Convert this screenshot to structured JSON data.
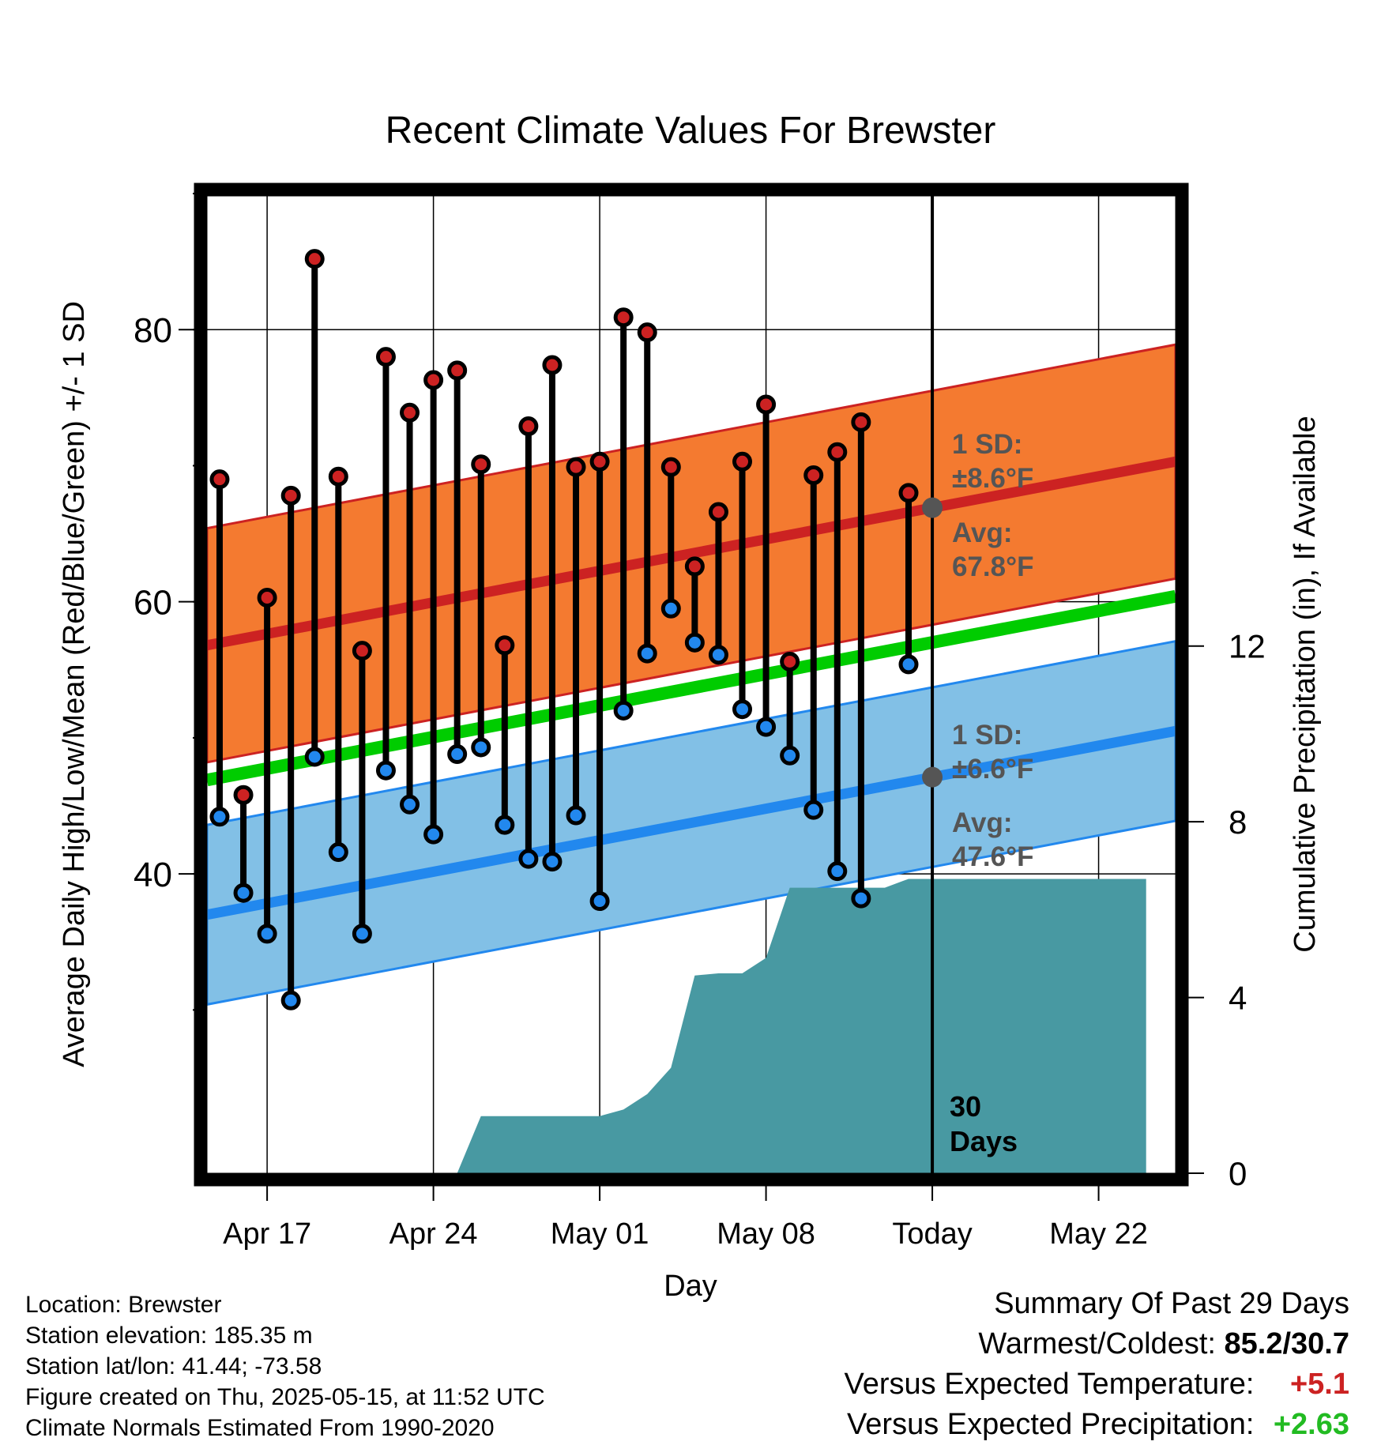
{
  "chart_data": {
    "type": "line",
    "title": "Recent Climate Values For Brewster",
    "xlabel": "Day",
    "ylabel_left": "Average Daily High/Low/Mean (Red/Blue/Green) +/- 1 SD",
    "ylabel_right": "Cumulative Precipitation (in), If Available",
    "x_tick_labels": [
      "Apr 17",
      "Apr 24",
      "May 01",
      "May 08",
      "Today",
      "May 22"
    ],
    "x_range": [
      "2025-04-14",
      "2025-05-24"
    ],
    "y_left_range": [
      18,
      90
    ],
    "y_left_ticks": [
      40,
      60,
      80
    ],
    "y_right_range": [
      0,
      22.3
    ],
    "y_right_ticks": [
      0,
      4,
      8,
      12
    ],
    "grid": true,
    "days": [
      "2025-04-15",
      "2025-04-16",
      "2025-04-17",
      "2025-04-18",
      "2025-04-19",
      "2025-04-20",
      "2025-04-21",
      "2025-04-22",
      "2025-04-23",
      "2025-04-24",
      "2025-04-25",
      "2025-04-26",
      "2025-04-27",
      "2025-04-28",
      "2025-04-29",
      "2025-04-30",
      "2025-05-01",
      "2025-05-02",
      "2025-05-03",
      "2025-05-04",
      "2025-05-05",
      "2025-05-06",
      "2025-05-07",
      "2025-05-08",
      "2025-05-09",
      "2025-05-10",
      "2025-05-11",
      "2025-05-12",
      "2025-05-14"
    ],
    "highs": [
      69.0,
      45.8,
      60.3,
      67.8,
      85.2,
      69.2,
      56.4,
      78.0,
      73.9,
      76.3,
      77.0,
      70.1,
      56.8,
      72.9,
      77.4,
      69.9,
      70.3,
      80.9,
      79.8,
      69.9,
      62.6,
      66.6,
      70.3,
      74.5,
      55.6,
      69.3,
      71.0,
      73.2,
      68.0
    ],
    "lows": [
      44.2,
      38.6,
      35.6,
      30.7,
      48.6,
      41.6,
      35.6,
      47.6,
      45.1,
      42.9,
      48.8,
      49.3,
      43.6,
      41.1,
      40.9,
      44.3,
      38.0,
      52.0,
      56.2,
      59.5,
      57.0,
      56.1,
      52.1,
      50.8,
      48.7,
      44.7,
      40.2,
      38.2,
      55.4
    ],
    "normals": {
      "high_avg_start": 56.8,
      "high_avg_end": 70.3,
      "low_avg_start": 37.0,
      "low_avg_end": 50.5,
      "mean_start": 46.9,
      "mean_end": 60.4,
      "high_sd": 8.6,
      "low_sd": 6.6
    },
    "precip_days": [
      "2025-04-24",
      "2025-04-25",
      "2025-04-26",
      "2025-04-30",
      "2025-05-01",
      "2025-05-02",
      "2025-05-03",
      "2025-05-04",
      "2025-05-05",
      "2025-05-06",
      "2025-05-07",
      "2025-05-08",
      "2025-05-09",
      "2025-05-10",
      "2025-05-11",
      "2025-05-12",
      "2025-05-13",
      "2025-05-14",
      "2025-05-24"
    ],
    "precip_cumulative": [
      0.0,
      0.0,
      1.3,
      1.3,
      1.3,
      1.45,
      1.8,
      2.4,
      4.5,
      4.55,
      4.55,
      4.9,
      6.5,
      6.5,
      6.5,
      6.5,
      6.5,
      6.7,
      6.7
    ],
    "annotations": {
      "high_sd": "1 SD:",
      "high_sd_value": "±8.6°F",
      "high_avg": "Avg:",
      "high_avg_value": "67.8°F",
      "low_sd": "1 SD:",
      "low_sd_value": "±6.6°F",
      "low_avg": "Avg:",
      "low_avg_value": "47.6°F",
      "days_line1": "30",
      "days_line2": "Days"
    },
    "colors": {
      "high_band": "#F47A30",
      "high_line": "#CC2222",
      "low_band": "#82C0E6",
      "low_line": "#2288EE",
      "mean_line": "#00CC00",
      "precip": "#4899A2",
      "high_dot": "#CC2222",
      "low_dot": "#2288EE",
      "today_dot": "#555555",
      "annotation_text": "#555555"
    }
  },
  "info": {
    "location": "Location: Brewster",
    "elevation": "Station elevation: 185.35 m",
    "latlon": "Station lat/lon: 41.44; -73.58",
    "created": "Figure created on Thu, 2025-05-15, at 11:52 UTC",
    "normals": "Climate Normals Estimated From 1990-2020"
  },
  "summary": {
    "title": "Summary Of Past 29 Days",
    "warm_cold_label": "Warmest/Coldest:",
    "warm_cold_value": "85.2/30.7",
    "temp_label": "Versus Expected Temperature:",
    "temp_value": "+5.1",
    "temp_color": "#CC2222",
    "precip_label": "Versus Expected Precipitation:",
    "precip_value": "+2.63",
    "precip_color": "#22BB22"
  }
}
